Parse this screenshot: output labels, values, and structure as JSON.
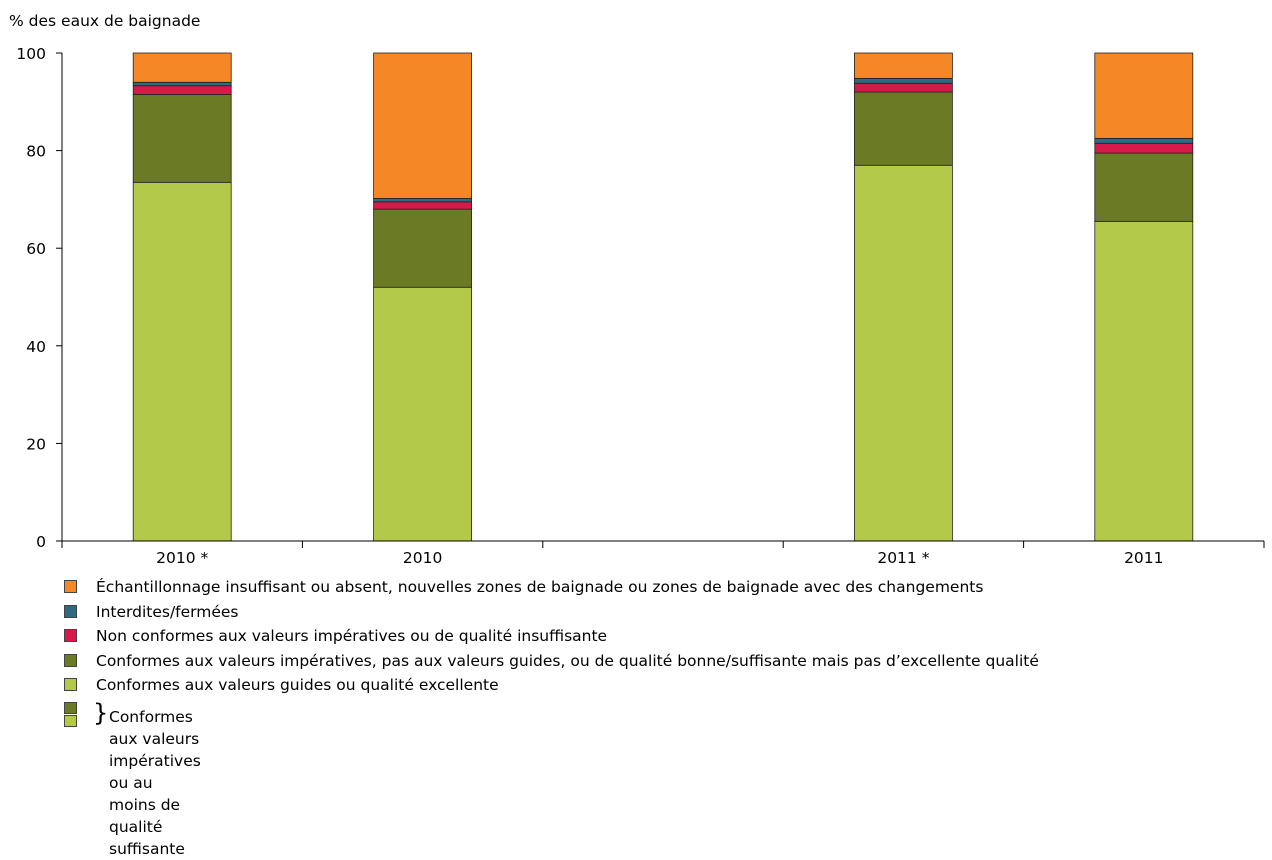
{
  "chart_data": {
    "type": "bar",
    "stacked": true,
    "ylabel": "% des eaux de baignade",
    "ylim": [
      0,
      100
    ],
    "yticks": [
      0,
      20,
      40,
      60,
      80,
      100
    ],
    "grid": false,
    "legend_position": "bottom",
    "categories": [
      "2010 *",
      "2010",
      "",
      "2011 *",
      "2011"
    ],
    "series": [
      {
        "name": "Conformes aux valeurs guides ou qualité excellente",
        "color": "#b3c94a",
        "values": [
          73.5,
          52,
          null,
          77,
          65.5
        ]
      },
      {
        "name": "Conformes aux valeurs impératives, pas aux valeurs guides, ou de qualité bonne/suffisante mais pas d’excellente qualité",
        "color": "#6b7a24",
        "values": [
          18,
          16,
          null,
          15,
          14
        ]
      },
      {
        "name": "Non conformes aux valeurs impératives ou de qualité insuffisante",
        "color": "#d7194a",
        "values": [
          1.8,
          1.5,
          null,
          1.8,
          2
        ]
      },
      {
        "name": "Interdites/fermées",
        "color": "#2c6b82",
        "values": [
          0.7,
          0.7,
          null,
          1.0,
          1.0
        ]
      },
      {
        "name": "Échantillonnage insuffisant ou absent, nouvelles zones de baignade ou zones de baignade avec des changements",
        "color": "#f58726",
        "values": [
          6.0,
          29.8,
          null,
          5.2,
          17.5
        ]
      }
    ],
    "combined_legend": "Conformes aux valeurs impératives ou au moins de qualité suffisante"
  }
}
